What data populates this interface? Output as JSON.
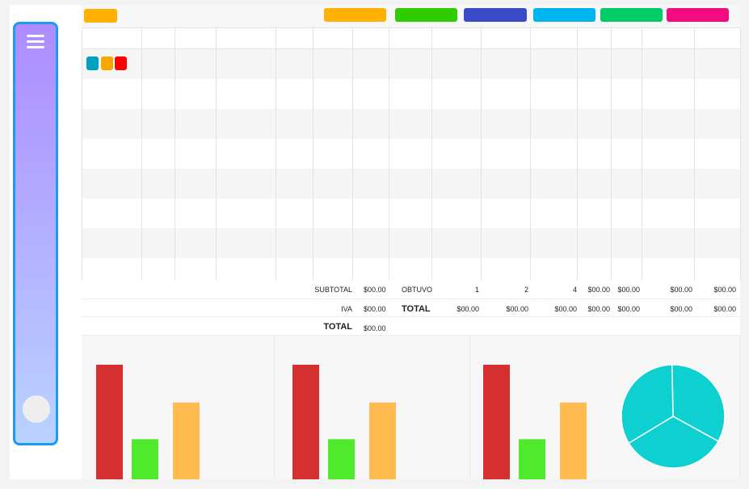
{
  "colors": {
    "sidebar_border": "#1a9cf0",
    "accent": "#ffb000"
  },
  "topbar": {
    "buttons": [
      {
        "name": "orange-button",
        "color": "#ffb000"
      },
      {
        "name": "green-button",
        "color": "#2ecc00"
      },
      {
        "name": "blue-button",
        "color": "#3b4bc8"
      },
      {
        "name": "cyan-button",
        "color": "#00b4f0"
      },
      {
        "name": "emerald-button",
        "color": "#00cc66"
      },
      {
        "name": "pink-button",
        "color": "#f20c80"
      }
    ]
  },
  "row_actions": [
    {
      "icon": "view-icon",
      "color": "#00a0c0"
    },
    {
      "icon": "edit-icon",
      "color": "#f5a800"
    },
    {
      "icon": "delete-icon",
      "color": "#ff0000"
    }
  ],
  "summary": {
    "subtotal_label": "SUBTOTAL",
    "subtotal_value": "$00.00",
    "obtuvo_label": "OBTUVO",
    "obtuvo_values": [
      "1",
      "2",
      "4",
      "$00.00",
      "$00.00",
      "$00.00",
      "$00.00"
    ],
    "iva_label": "IVA",
    "iva_value": "$00.00",
    "total_mid_label": "TOTAL",
    "total_values": [
      "$00.00",
      "$00.00",
      "$00.00",
      "$00.00",
      "$00.00",
      "$00.00",
      "$00.00"
    ],
    "total_label": "TOTAL",
    "total_value": "$00.00"
  },
  "chart_data": [
    {
      "type": "bar",
      "values": [
        100,
        35,
        67
      ],
      "colors": [
        "#d63031",
        "#4fea2b",
        "#ffbb50"
      ],
      "ylim": [
        0,
        100
      ]
    },
    {
      "type": "bar",
      "values": [
        100,
        35,
        67
      ],
      "colors": [
        "#d63031",
        "#4fea2b",
        "#ffbb50"
      ],
      "ylim": [
        0,
        100
      ]
    },
    {
      "type": "bar",
      "values": [
        100,
        35,
        67
      ],
      "colors": [
        "#d63031",
        "#4fea2b",
        "#ffbb50"
      ],
      "ylim": [
        0,
        100
      ]
    },
    {
      "type": "pie",
      "values": [
        1,
        1,
        1
      ],
      "color": "#0fd0d0"
    }
  ]
}
